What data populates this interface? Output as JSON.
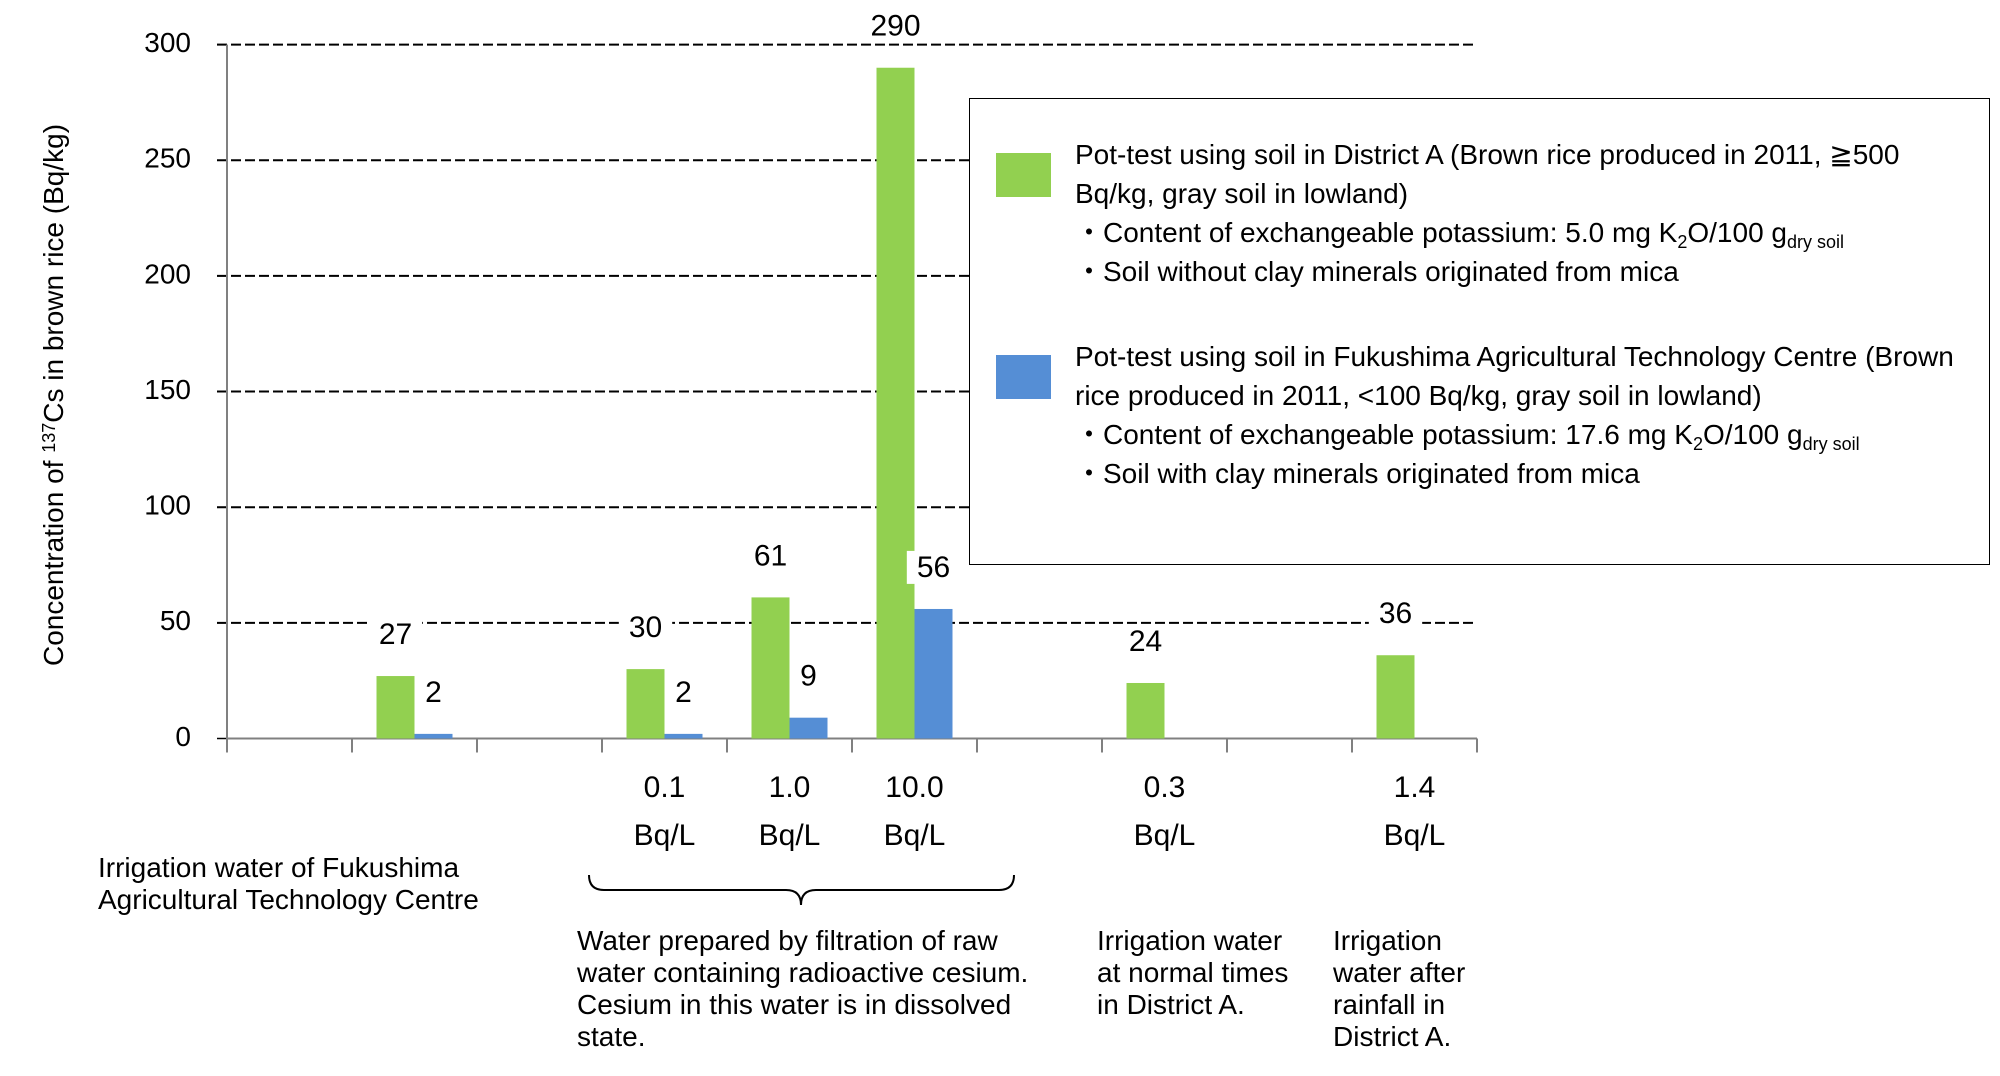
{
  "chart_data": {
    "type": "bar",
    "ylabel": [
      "Concentration of ",
      "137",
      "Cs in brown rice (Bq/kg)"
    ],
    "categories": [
      null,
      null,
      null,
      "0.1 Bq/L",
      "1.0 Bq/L",
      "10.0 Bq/L",
      null,
      "0.3 Bq/L",
      null,
      "1.4 Bq/L"
    ],
    "series": [
      {
        "name": "Pot-test using soil in District A (Brown rice produced in 2011, ≧500 Bq/kg, gray soil in lowland)",
        "color": "#92d050",
        "values": [
          null,
          27,
          null,
          30,
          61,
          290,
          null,
          24,
          null,
          36
        ],
        "notes": [
          [
            "・Content of exchangeable potassium: 5.0 mg K",
            "2",
            "O/100 g",
            "dry soil"
          ],
          [
            "・Soil without clay minerals originated from mica"
          ]
        ]
      },
      {
        "name": "Pot-test using soil in Fukushima Agricultural Technology Centre (Brown rice produced in 2011, <100 Bq/kg, gray soil in lowland)",
        "color": "#558ed5",
        "values": [
          null,
          2,
          null,
          2,
          9,
          56,
          null,
          null,
          null,
          null
        ],
        "notes": [
          [
            "・Content of exchangeable potassium: 17.6 mg K",
            "2",
            "O/100 g",
            "dry soil"
          ],
          [
            "・Soil with clay minerals originated from mica"
          ]
        ]
      }
    ],
    "ylim": [
      0,
      300
    ],
    "yticks": [
      0,
      50,
      100,
      150,
      200,
      250,
      300
    ],
    "grid": true,
    "annotations": [
      "Irrigation water of Fukushima Agricultural Technology Centre",
      "Water prepared by filtration of raw water containing radioactive cesium. Cesium in this water is in dissolved state.",
      "Irrigation water at normal times in District A.",
      "Irrigation water after rainfall in District A."
    ]
  }
}
